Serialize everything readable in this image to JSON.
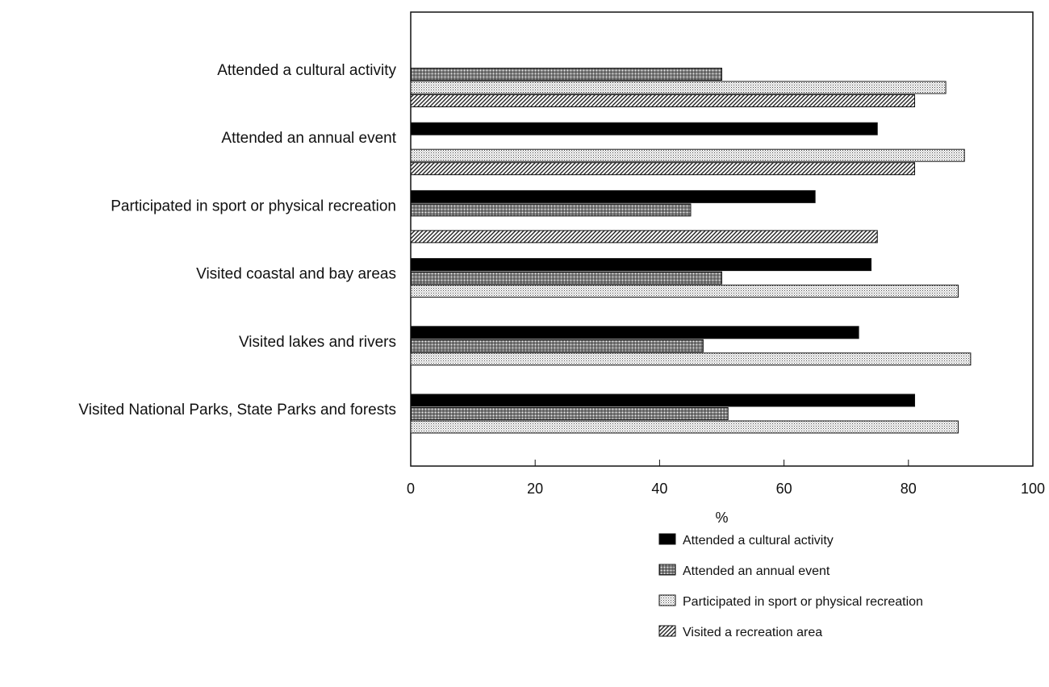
{
  "chart_data": {
    "type": "bar",
    "orientation": "horizontal",
    "categories": [
      "Attended a cultural activity",
      "Attended an annual event",
      "Participated in sport or physical recreation",
      "Visited coastal and bay areas",
      "Visited lakes and rivers",
      "Visited National Parks, State Parks and forests"
    ],
    "series": [
      {
        "name": "Attended a cultural activity",
        "pattern": "solid",
        "values": [
          null,
          75,
          65,
          74,
          72,
          81
        ]
      },
      {
        "name": "Attended an annual event",
        "pattern": "crosshatch",
        "values": [
          50,
          null,
          45,
          50,
          47,
          51
        ]
      },
      {
        "name": "Participated in sport or physical recreation",
        "pattern": "dots",
        "values": [
          86,
          89,
          null,
          88,
          90,
          88
        ]
      },
      {
        "name": "Visited a recreation area",
        "pattern": "diagonal",
        "values": [
          81,
          81,
          75,
          null,
          null,
          null
        ]
      }
    ],
    "xlabel": "%",
    "ylabel": "",
    "xlim": [
      0,
      100
    ],
    "xticks": [
      0,
      20,
      40,
      60,
      80,
      100
    ],
    "grid": false,
    "legend_position": "bottom-right"
  },
  "colors": {
    "bar_dark": "#000000",
    "bar_outline": "#111111",
    "background": "#ffffff"
  }
}
